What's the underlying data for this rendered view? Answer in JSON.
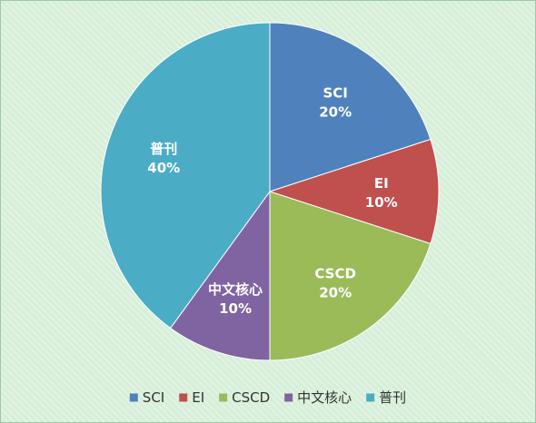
{
  "chart_data": {
    "type": "pie",
    "title": "",
    "slices": [
      {
        "label": "SCI",
        "value": 20,
        "value_label": "20%",
        "color": "#4f81bd"
      },
      {
        "label": "EI",
        "value": 10,
        "value_label": "10%",
        "color": "#c0504d"
      },
      {
        "label": "CSCD",
        "value": 20,
        "value_label": "20%",
        "color": "#9bbb59"
      },
      {
        "label": "中文核心",
        "value": 10,
        "value_label": "10%",
        "color": "#8064a2"
      },
      {
        "label": "普刊",
        "value": 40,
        "value_label": "40%",
        "color": "#4bacc6"
      }
    ],
    "start_angle": "12 o'clock",
    "direction": "clockwise",
    "data_labels": "inside",
    "legend": {
      "position": "bottom"
    },
    "background_color": "#d7efd9"
  }
}
